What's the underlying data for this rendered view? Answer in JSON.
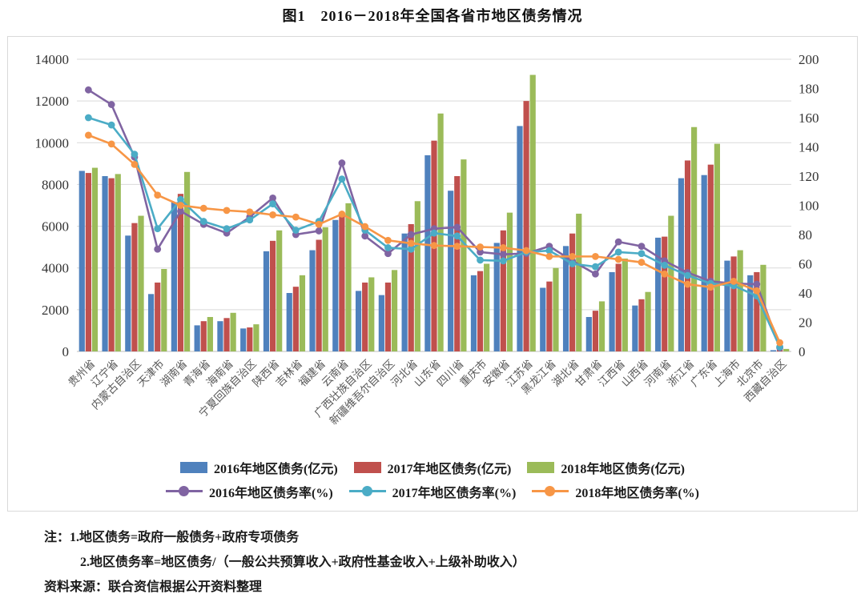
{
  "title": "图1　2016－2018年全国各省市地区债务情况",
  "notes": {
    "line1": "注：1.地区债务=政府一般债务+政府专项债务",
    "line2": "2.地区债务率=地区债务/（一般公共预算收入+政府性基金收入+上级补助收入）",
    "source": "资料来源：联合资信根据公开资料整理"
  },
  "chart_data": {
    "type": "bar+line-combo",
    "title": "图1　2016－2018年全国各省市地区债务情况",
    "grid": true,
    "legend_position": "bottom",
    "left_axis": {
      "min": 0,
      "max": 14000,
      "step": 2000,
      "label": "亿元"
    },
    "right_axis": {
      "min": 0,
      "max": 200,
      "step": 20,
      "label": "%"
    },
    "colors": {
      "bar2016": "#4F81BD",
      "bar2017": "#C0504D",
      "bar2018": "#9BBB59",
      "line2016": "#8064A2",
      "line2017": "#4BACC6",
      "line2018": "#F79646",
      "gridline": "#d9d9d9",
      "axis_text": "#333333",
      "category_text": "#595959"
    },
    "categories": [
      "贵州省",
      "辽宁省",
      "内蒙古自治区",
      "天津市",
      "湖南省",
      "青海省",
      "海南省",
      "宁夏回族自治区",
      "陕西省",
      "吉林省",
      "福建省",
      "云南省",
      "广西壮族自治区",
      "新疆维吾尔自治区",
      "河北省",
      "山东省",
      "四川省",
      "重庆市",
      "安徽省",
      "江苏省",
      "黑龙江省",
      "湖北省",
      "甘肃省",
      "江西省",
      "山西省",
      "河南省",
      "浙江省",
      "广东省",
      "上海市",
      "北京市",
      "西藏自治区"
    ],
    "bar_series": [
      {
        "name": "2016年地区债务(亿元)",
        "color": "#4F81BD",
        "axis": "left",
        "values": [
          8650,
          8400,
          5550,
          2750,
          7150,
          1250,
          1450,
          1100,
          4800,
          2800,
          4850,
          6300,
          2900,
          2700,
          5650,
          9400,
          7700,
          3650,
          5200,
          10800,
          3050,
          5050,
          1650,
          3800,
          2200,
          5450,
          8300,
          8450,
          4350,
          3650,
          60
        ]
      },
      {
        "name": "2017年地区债务(亿元)",
        "color": "#C0504D",
        "axis": "left",
        "values": [
          8550,
          8300,
          6150,
          3300,
          7550,
          1450,
          1600,
          1150,
          5300,
          3100,
          5350,
          6650,
          3300,
          3300,
          6100,
          10100,
          8400,
          3850,
          5800,
          12000,
          3350,
          5650,
          1950,
          4200,
          2500,
          5500,
          9150,
          8950,
          4550,
          3800,
          80
        ]
      },
      {
        "name": "2018年地区债务(亿元)",
        "color": "#9BBB59",
        "axis": "left",
        "values": [
          8800,
          8500,
          6500,
          3950,
          8600,
          1650,
          1850,
          1300,
          5800,
          3650,
          5950,
          7100,
          3550,
          3900,
          7200,
          11400,
          9200,
          4200,
          6650,
          13250,
          4000,
          6600,
          2400,
          4450,
          2850,
          6500,
          10750,
          9950,
          4850,
          4150,
          120
        ]
      }
    ],
    "line_series": [
      {
        "name": "2016年地区债务率(%)",
        "color": "#8064A2",
        "axis": "right",
        "values": [
          179,
          169,
          133,
          70,
          96,
          87,
          81,
          92,
          105,
          80,
          82.5,
          129,
          79,
          67,
          80,
          84,
          85,
          68,
          66.5,
          67,
          72,
          62,
          53,
          75,
          72,
          62,
          54,
          48,
          46.5,
          46,
          2.5
        ]
      },
      {
        "name": "2017年地区债务率(%)",
        "color": "#4BACC6",
        "axis": "right",
        "values": [
          160,
          155,
          135,
          84,
          104,
          89,
          84,
          90,
          101,
          83,
          89,
          118,
          83,
          71,
          70,
          81,
          79,
          62.5,
          62,
          68,
          69,
          60,
          58,
          68,
          67,
          59,
          52,
          46.5,
          45,
          38,
          3
        ]
      },
      {
        "name": "2018年地区债务率(%)",
        "color": "#F79646",
        "axis": "right",
        "values": [
          148,
          142,
          128,
          107,
          100,
          98,
          96.5,
          95.5,
          93.5,
          92,
          87,
          94,
          85.5,
          76,
          74,
          72.5,
          72,
          71.5,
          71,
          69,
          65,
          65,
          65,
          63,
          61,
          53,
          46,
          44,
          48,
          41.5,
          6
        ]
      }
    ]
  }
}
